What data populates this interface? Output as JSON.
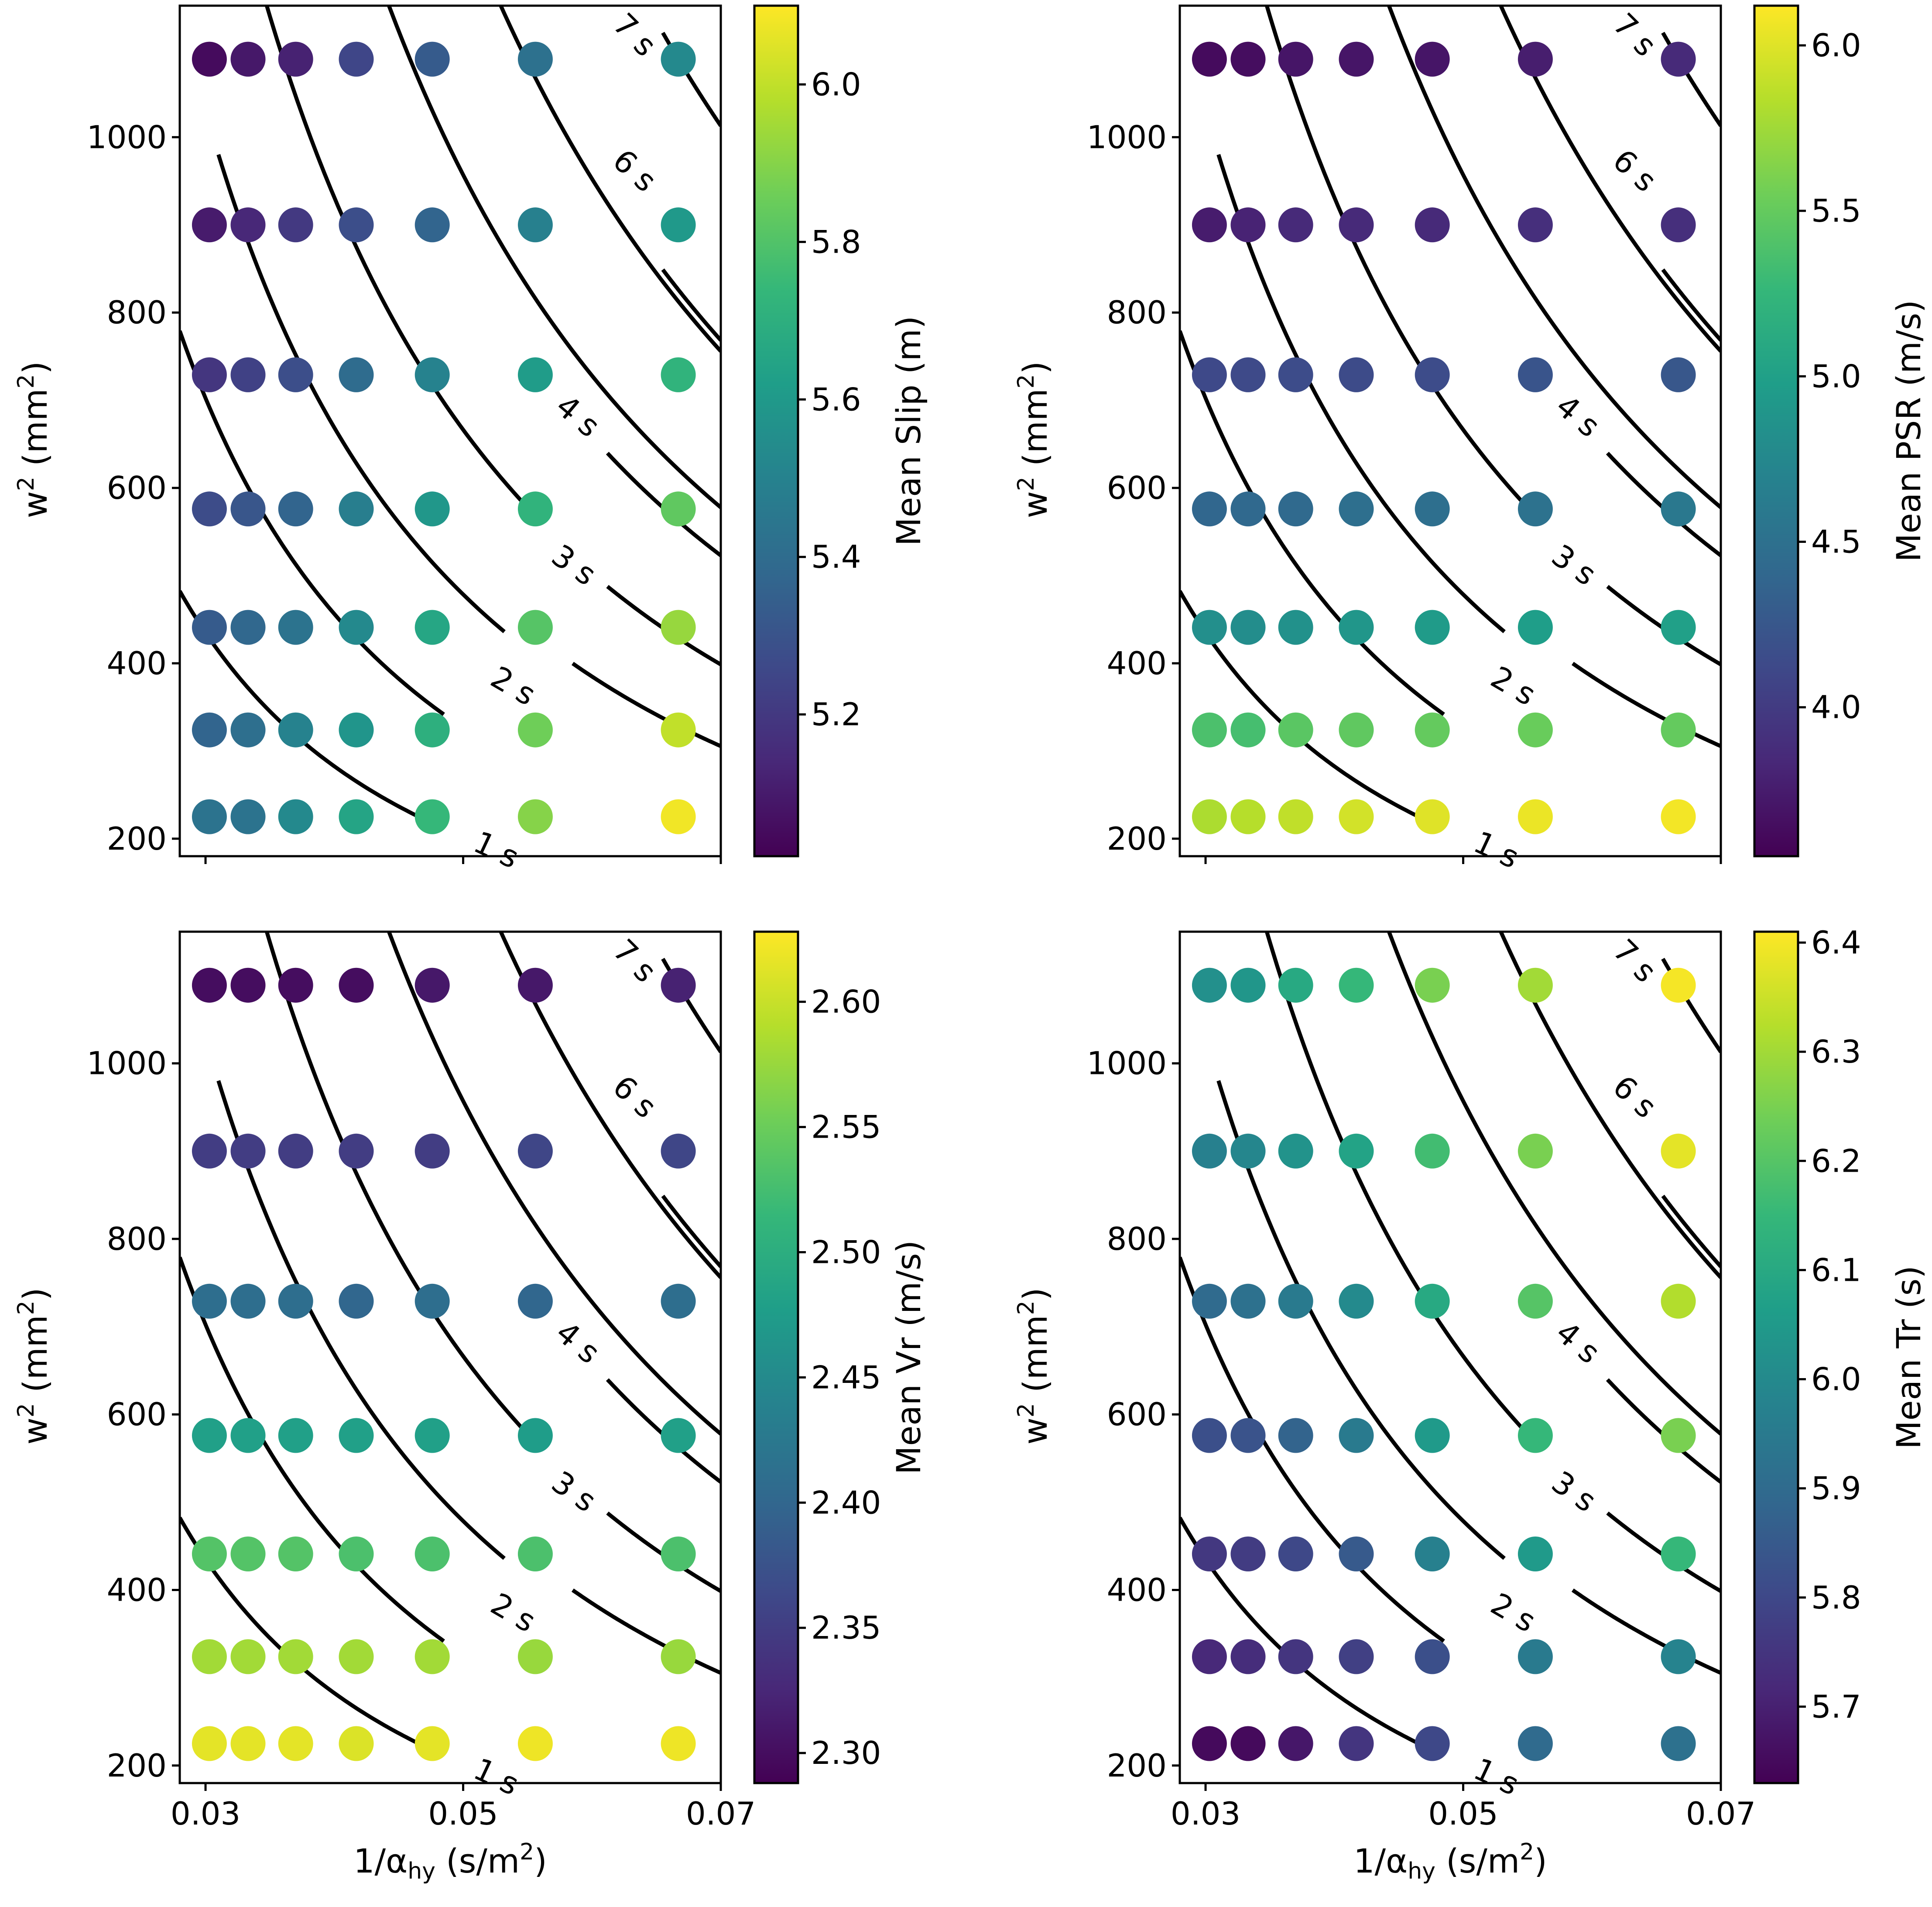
{
  "colormap": "viridis",
  "viridis_stops": [
    "#440154",
    "#482878",
    "#3e4989",
    "#31688e",
    "#26828e",
    "#1f9e89",
    "#35b779",
    "#6ece58",
    "#b5de2b",
    "#fde725"
  ],
  "contour_color": "#000000",
  "background": "#ffffff",
  "chart_data": [
    {
      "type": "scatter",
      "panel": "top-left",
      "xlabel": "1/α",
      "xlabel_sub": "hy",
      "xlabel_units": " (s/m",
      "xlabel_sup": "2",
      "xlabel_end": ")",
      "ylabel": "w",
      "ylabel_sup": "2",
      "ylabel_units": " (mm",
      "ylabel_units_sup": "2",
      "ylabel_end": ")",
      "xlim": [
        0.028,
        0.07
      ],
      "ylim": [
        180,
        1150
      ],
      "xticks": [
        0.03,
        0.05,
        0.07
      ],
      "xtick_labels": [],
      "yticks": [
        200,
        400,
        600,
        800,
        1000
      ],
      "ytick_labels": [
        "200",
        "400",
        "600",
        "800",
        "1000"
      ],
      "x": [
        0.0303,
        0.0333,
        0.037,
        0.0417,
        0.0476,
        0.0556,
        0.0667
      ],
      "y": [
        225,
        324,
        441,
        576,
        729,
        900,
        1089
      ],
      "values": [
        [
          5.43,
          5.43,
          5.53,
          5.65,
          5.74,
          5.9,
          6.08
        ],
        [
          5.37,
          5.41,
          5.5,
          5.58,
          5.7,
          5.86,
          6.0
        ],
        [
          5.33,
          5.38,
          5.43,
          5.53,
          5.66,
          5.81,
          5.93
        ],
        [
          5.27,
          5.31,
          5.37,
          5.48,
          5.59,
          5.72,
          5.83
        ],
        [
          5.19,
          5.23,
          5.28,
          5.4,
          5.5,
          5.61,
          5.72
        ],
        [
          5.1,
          5.14,
          5.2,
          5.28,
          5.37,
          5.49,
          5.6
        ],
        [
          5.05,
          5.09,
          5.12,
          5.25,
          5.33,
          5.42,
          5.53
        ]
      ],
      "colorbar": {
        "label": "Mean Slip (m)",
        "range": [
          5.02,
          6.1
        ],
        "ticks": [
          5.2,
          5.4,
          5.6,
          5.8,
          6.0
        ],
        "tick_labels": [
          "5.2",
          "5.4",
          "5.6",
          "5.8",
          "6.0"
        ]
      },
      "contours": [
        "1 s",
        "2 s",
        "3 s",
        "4 s",
        "6 s",
        "7 s"
      ]
    },
    {
      "type": "scatter",
      "panel": "top-right",
      "xlabel": "1/α",
      "xlabel_sub": "hy",
      "xlabel_units": " (s/m",
      "xlabel_sup": "2",
      "xlabel_end": ")",
      "ylabel": "w",
      "ylabel_sup": "2",
      "ylabel_units": " (mm",
      "ylabel_units_sup": "2",
      "ylabel_end": ")",
      "xlim": [
        0.028,
        0.07
      ],
      "ylim": [
        180,
        1150
      ],
      "xticks": [
        0.03,
        0.05,
        0.07
      ],
      "xtick_labels": [],
      "yticks": [
        200,
        400,
        600,
        800,
        1000
      ],
      "ytick_labels": [
        "200",
        "400",
        "600",
        "800",
        "1000"
      ],
      "x": [
        0.0303,
        0.0333,
        0.037,
        0.0417,
        0.0476,
        0.0556,
        0.0667
      ],
      "y": [
        225,
        324,
        441,
        576,
        729,
        900,
        1089
      ],
      "values": [
        [
          5.8,
          5.84,
          5.88,
          5.95,
          6.0,
          6.05,
          6.08
        ],
        [
          5.38,
          5.35,
          5.45,
          5.48,
          5.5,
          5.52,
          5.5
        ],
        [
          4.82,
          4.8,
          4.85,
          4.9,
          4.95,
          4.98,
          5.0
        ],
        [
          4.4,
          4.42,
          4.43,
          4.48,
          4.48,
          4.52,
          4.58
        ],
        [
          4.12,
          4.13,
          4.15,
          4.14,
          4.15,
          4.22,
          4.25
        ],
        [
          3.75,
          3.8,
          3.85,
          3.85,
          3.85,
          3.9,
          3.9
        ],
        [
          3.62,
          3.64,
          3.7,
          3.7,
          3.7,
          3.76,
          3.85
        ]
      ],
      "colorbar": {
        "label": "Mean PSR (m/s)",
        "range": [
          3.55,
          6.12
        ],
        "ticks": [
          4.0,
          4.5,
          5.0,
          5.5,
          6.0
        ],
        "tick_labels": [
          "4.0",
          "4.5",
          "5.0",
          "5.5",
          "6.0"
        ]
      },
      "contours": [
        "1 s",
        "2 s",
        "3 s",
        "4 s",
        "6 s",
        "7 s"
      ]
    },
    {
      "type": "scatter",
      "panel": "bottom-left",
      "xlabel": "1/α",
      "xlabel_sub": "hy",
      "xlabel_units": " (s/m",
      "xlabel_sup": "2",
      "xlabel_end": ")",
      "ylabel": "w",
      "ylabel_sup": "2",
      "ylabel_units": " (mm",
      "ylabel_units_sup": "2",
      "ylabel_end": ")",
      "xlim": [
        0.028,
        0.07
      ],
      "ylim": [
        180,
        1150
      ],
      "xticks": [
        0.03,
        0.05,
        0.07
      ],
      "xtick_labels": [
        "0.03",
        "0.05",
        "0.07"
      ],
      "yticks": [
        200,
        400,
        600,
        800,
        1000
      ],
      "ytick_labels": [
        "200",
        "400",
        "600",
        "800",
        "1000"
      ],
      "x": [
        0.0303,
        0.0333,
        0.037,
        0.0417,
        0.0476,
        0.0556,
        0.0667
      ],
      "y": [
        225,
        324,
        441,
        576,
        729,
        900,
        1089
      ],
      "values": [
        [
          2.615,
          2.615,
          2.615,
          2.61,
          2.615,
          2.62,
          2.62
        ],
        [
          2.58,
          2.58,
          2.58,
          2.58,
          2.58,
          2.575,
          2.575
        ],
        [
          2.535,
          2.535,
          2.535,
          2.53,
          2.53,
          2.53,
          2.53
        ],
        [
          2.48,
          2.48,
          2.48,
          2.48,
          2.48,
          2.475,
          2.48
        ],
        [
          2.41,
          2.41,
          2.41,
          2.4,
          2.41,
          2.4,
          2.41
        ],
        [
          2.35,
          2.35,
          2.35,
          2.35,
          2.35,
          2.36,
          2.36
        ],
        [
          2.3,
          2.3,
          2.3,
          2.3,
          2.31,
          2.31,
          2.32
        ]
      ],
      "colorbar": {
        "label": "Mean Vr (m/s)",
        "range": [
          2.288,
          2.628
        ],
        "ticks": [
          2.3,
          2.35,
          2.4,
          2.45,
          2.5,
          2.55,
          2.6
        ],
        "tick_labels": [
          "2.30",
          "2.35",
          "2.40",
          "2.45",
          "2.50",
          "2.55",
          "2.60"
        ]
      },
      "contours": [
        "1 s",
        "2 s",
        "3 s",
        "4 s",
        "6 s",
        "7 s"
      ]
    },
    {
      "type": "scatter",
      "panel": "bottom-right",
      "xlabel": "1/α",
      "xlabel_sub": "hy",
      "xlabel_units": " (s/m",
      "xlabel_sup": "2",
      "xlabel_end": ")",
      "ylabel": "w",
      "ylabel_sup": "2",
      "ylabel_units": " (mm",
      "ylabel_units_sup": "2",
      "ylabel_end": ")",
      "xlim": [
        0.028,
        0.07
      ],
      "ylim": [
        180,
        1150
      ],
      "xticks": [
        0.03,
        0.05,
        0.07
      ],
      "xtick_labels": [
        "0.03",
        "0.05",
        "0.07"
      ],
      "yticks": [
        200,
        400,
        600,
        800,
        1000
      ],
      "ytick_labels": [
        "200",
        "400",
        "600",
        "800",
        "1000"
      ],
      "x": [
        0.0303,
        0.0333,
        0.037,
        0.0417,
        0.0476,
        0.0556,
        0.0667
      ],
      "y": [
        225,
        324,
        441,
        576,
        729,
        900,
        1089
      ],
      "values": [
        [
          5.65,
          5.65,
          5.68,
          5.75,
          5.8,
          5.9,
          5.92
        ],
        [
          5.72,
          5.73,
          5.75,
          5.78,
          5.82,
          5.95,
          5.98
        ],
        [
          5.76,
          5.77,
          5.8,
          5.85,
          5.97,
          6.05,
          6.15
        ],
        [
          5.82,
          5.83,
          5.88,
          5.95,
          6.05,
          6.15,
          6.25
        ],
        [
          5.9,
          5.92,
          5.95,
          6.0,
          6.1,
          6.2,
          6.32
        ],
        [
          5.97,
          5.99,
          6.03,
          6.08,
          6.17,
          6.25,
          6.38
        ],
        [
          6.02,
          6.04,
          6.1,
          6.15,
          6.25,
          6.3,
          6.4
        ]
      ],
      "colorbar": {
        "label": "Mean Tr (s)",
        "range": [
          5.63,
          6.41
        ],
        "ticks": [
          5.7,
          5.8,
          5.9,
          6.0,
          6.1,
          6.2,
          6.3,
          6.4
        ],
        "tick_labels": [
          "5.7",
          "5.8",
          "5.9",
          "6.0",
          "6.1",
          "6.2",
          "6.3",
          "6.4"
        ]
      },
      "contours": [
        "1 s",
        "2 s",
        "3 s",
        "4 s",
        "6 s",
        "7 s"
      ]
    }
  ]
}
